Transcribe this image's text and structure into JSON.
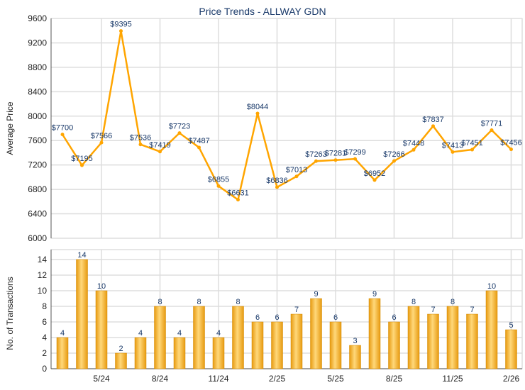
{
  "chart_data": [
    {
      "type": "line",
      "title": "Price Trends - ALLWAY GDN",
      "ylabel": "Average Price",
      "ylim": [
        6000,
        9600
      ],
      "yticks": [
        6000,
        6400,
        6800,
        7200,
        7600,
        8000,
        8400,
        8800,
        9200,
        9600
      ],
      "values": [
        7700,
        7195,
        7566,
        9395,
        7536,
        7419,
        7723,
        7487,
        6855,
        6631,
        8044,
        6836,
        7013,
        7263,
        7281,
        7299,
        6952,
        7266,
        7448,
        7837,
        7413,
        7451,
        7771,
        7456
      ],
      "value_prefix": "$",
      "color": "#ffa500",
      "grid": true
    },
    {
      "type": "bar",
      "ylabel": "No. of Transactions",
      "ylim": [
        0,
        14
      ],
      "yticks": [
        0,
        2,
        4,
        6,
        8,
        10,
        12,
        14
      ],
      "values": [
        4,
        14,
        10,
        2,
        4,
        8,
        4,
        8,
        4,
        8,
        6,
        6,
        7,
        9,
        6,
        3,
        9,
        6,
        8,
        7,
        8,
        7,
        10,
        5
      ],
      "xtick_labels": [
        {
          "index": 2,
          "label": "5/24"
        },
        {
          "index": 5,
          "label": "8/24"
        },
        {
          "index": 8,
          "label": "11/24"
        },
        {
          "index": 11,
          "label": "2/25"
        },
        {
          "index": 14,
          "label": "5/25"
        },
        {
          "index": 17,
          "label": "8/25"
        },
        {
          "index": 20,
          "label": "11/25"
        },
        {
          "index": 23,
          "label": "2/26"
        }
      ],
      "color": "#f0a820",
      "grid": true
    }
  ]
}
